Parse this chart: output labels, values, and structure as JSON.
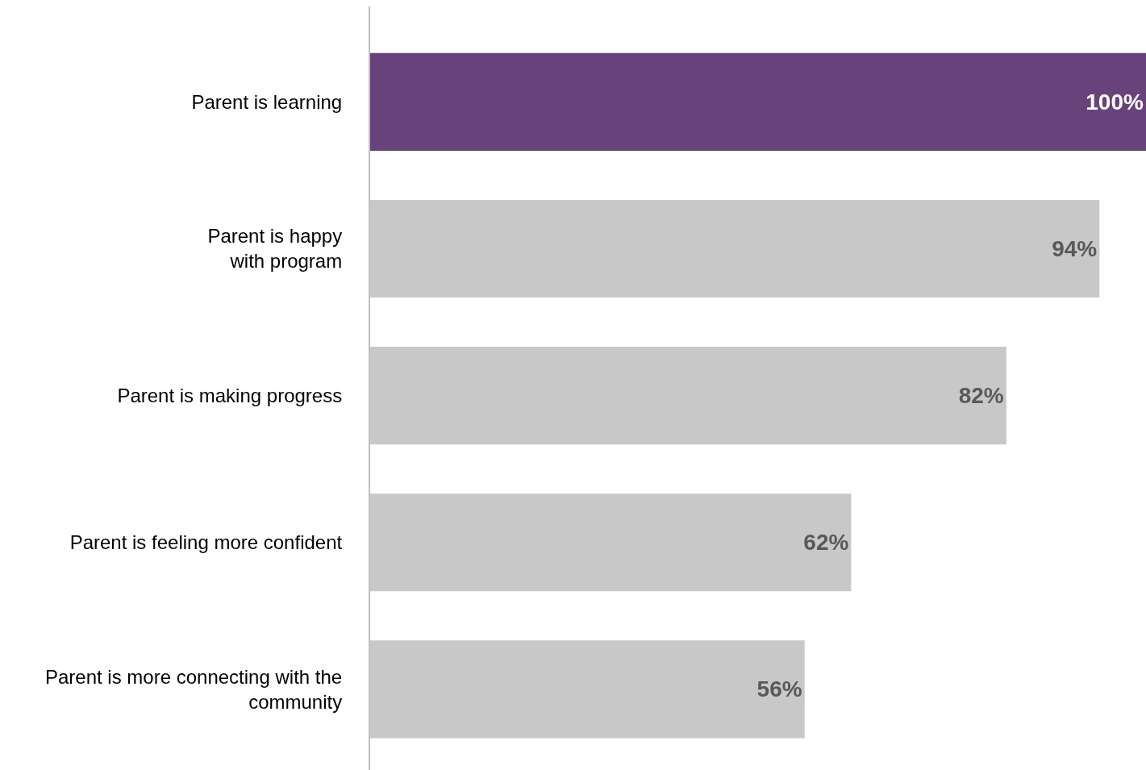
{
  "chart_data": {
    "type": "bar",
    "orientation": "horizontal",
    "categories": [
      "Parent is learning",
      "Parent is happy\nwith program",
      "Parent is making progress",
      "Parent is feeling more confident",
      "Parent is more connecting with the\ncommunity"
    ],
    "values": [
      100,
      94,
      82,
      62,
      56
    ],
    "colors": [
      "#68427a",
      "#c8c8c8",
      "#c8c8c8",
      "#c8c8c8",
      "#c8c8c8"
    ],
    "value_labels": [
      "100%",
      "94%",
      "82%",
      "62%",
      "56%"
    ],
    "legend": false
  }
}
